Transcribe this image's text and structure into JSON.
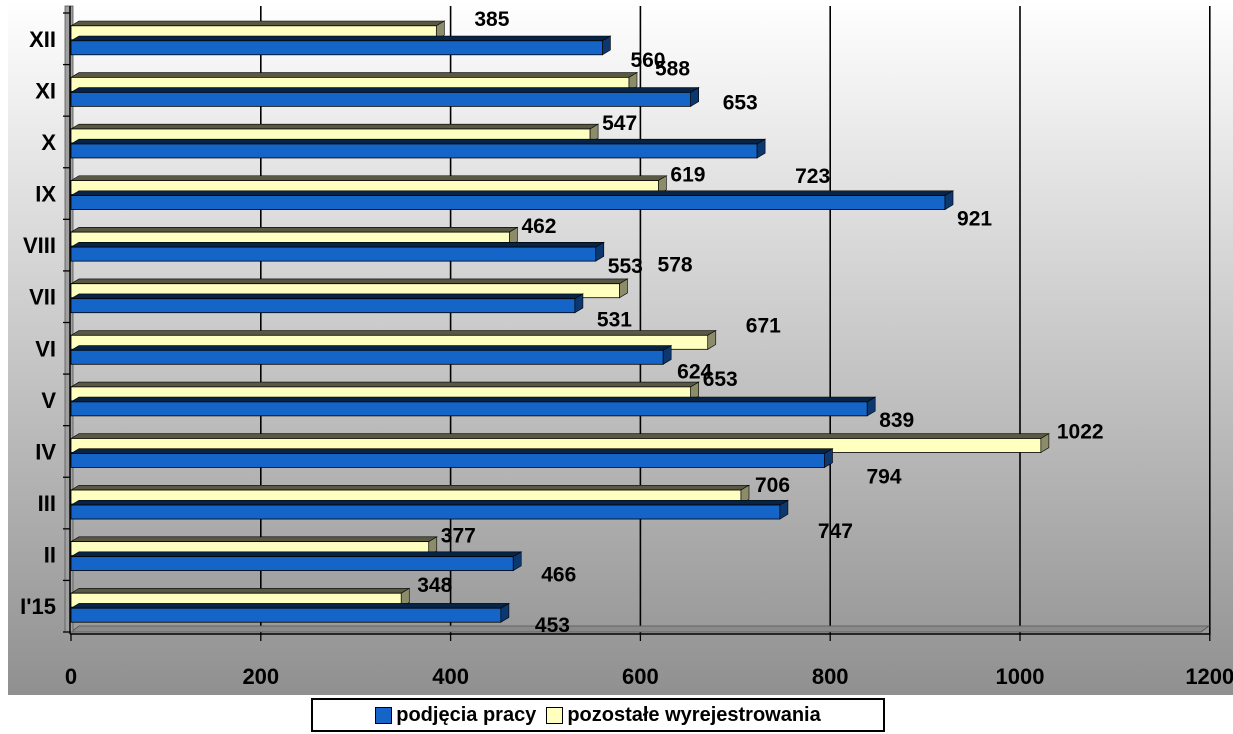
{
  "chart_data": {
    "type": "bar",
    "orientation": "horizontal",
    "categories": [
      "I'15",
      "II",
      "III",
      "IV",
      "V",
      "VI",
      "VII",
      "VIII",
      "IX",
      "X",
      "XI",
      "XII"
    ],
    "series": [
      {
        "name": "podjęcia pracy",
        "color": "#1565c9",
        "values": [
          453,
          466,
          747,
          794,
          839,
          624,
          531,
          553,
          921,
          723,
          653,
          560
        ]
      },
      {
        "name": "pozostałe wyrejestrowania",
        "color": "#ffffc0",
        "values": [
          348,
          377,
          706,
          1022,
          653,
          671,
          578,
          462,
          619,
          547,
          588,
          385
        ]
      }
    ],
    "xlim": [
      0,
      1200
    ],
    "xticks": [
      "0",
      "200",
      "400",
      "600",
      "800",
      "1000",
      "1200"
    ],
    "grid": true,
    "legend_position": "bottom",
    "background_gradient": [
      "#ffffff",
      "#909090"
    ]
  }
}
